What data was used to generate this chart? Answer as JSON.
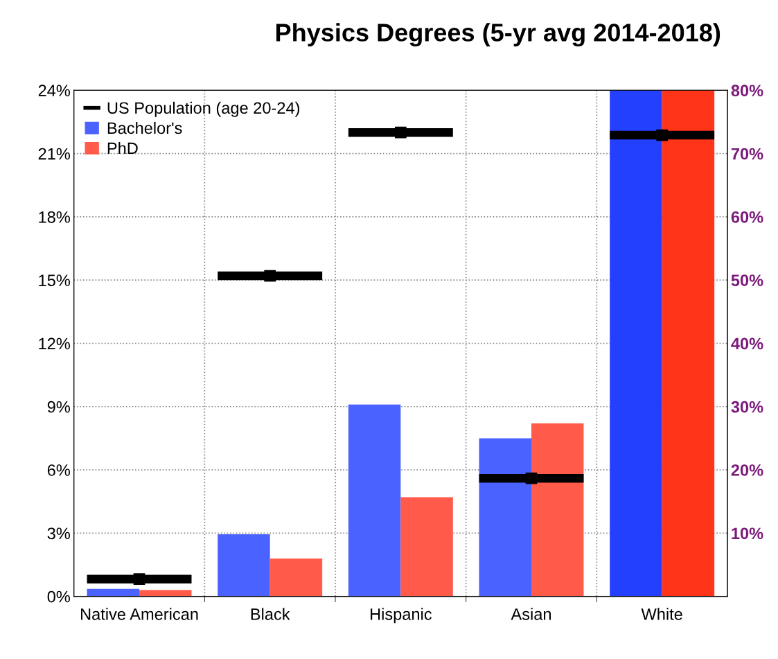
{
  "chart_data": {
    "type": "bar",
    "title": "Physics Degrees (5-yr avg 2014-2018)",
    "categories": [
      "Native American",
      "Black",
      "Hispanic",
      "Asian",
      "White"
    ],
    "series": [
      {
        "name": "Bachelor's",
        "color": "#4a62ff",
        "values": [
          0.36,
          2.95,
          9.1,
          7.5,
          null
        ]
      },
      {
        "name": "PhD",
        "color": "#ff5a4a",
        "values": [
          0.3,
          1.8,
          4.7,
          8.2,
          null
        ]
      },
      {
        "color": "#2440ff",
        "axis": "y2",
        "values": [
          null,
          null,
          null,
          null,
          80
        ]
      },
      {
        "color": "#ff3418",
        "axis": "y2",
        "values": [
          null,
          null,
          null,
          null,
          80
        ]
      },
      {
        "name": "US Population (age 20-24)",
        "type": "scatter",
        "color": "#000000",
        "values": [
          0.82,
          15.2,
          22.0,
          5.6,
          null
        ]
      },
      {
        "type": "scatter",
        "color": "#000000",
        "axis": "y2",
        "values": [
          null,
          null,
          null,
          null,
          72.9
        ]
      }
    ],
    "ylim": [
      0,
      24
    ],
    "yticks": [
      {
        "value": 0,
        "label": "0%"
      },
      {
        "value": 3,
        "label": "3%"
      },
      {
        "value": 6,
        "label": "6%"
      },
      {
        "value": 9,
        "label": "9%"
      },
      {
        "value": 12,
        "label": "12%"
      },
      {
        "value": 15,
        "label": "15%"
      },
      {
        "value": 18,
        "label": "18%"
      },
      {
        "value": 21,
        "label": "21%"
      },
      {
        "value": 24,
        "label": "24%"
      }
    ],
    "y2lim": [
      0,
      80
    ],
    "y2ticks": [
      {
        "value": 10,
        "label": "10%"
      },
      {
        "value": 20,
        "label": "20%"
      },
      {
        "value": 30,
        "label": "30%"
      },
      {
        "value": 40,
        "label": "40%"
      },
      {
        "value": 50,
        "label": "50%"
      },
      {
        "value": 60,
        "label": "60%"
      },
      {
        "value": 70,
        "label": "70%"
      },
      {
        "value": 80,
        "label": "80%"
      }
    ],
    "grid": true,
    "legend": "top left"
  }
}
